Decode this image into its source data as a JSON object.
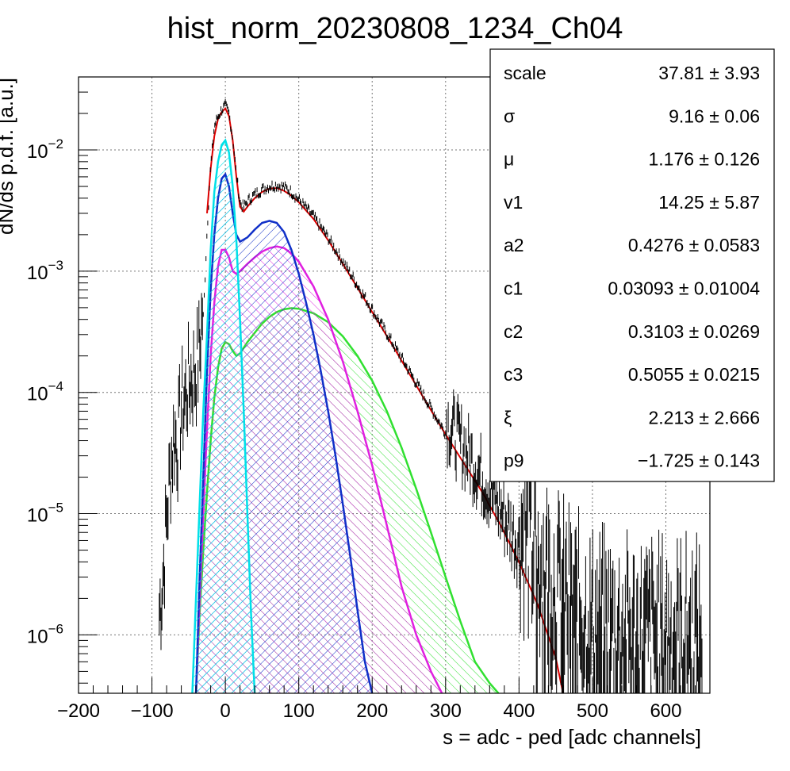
{
  "chart_data": {
    "type": "line",
    "title": "hist_norm_20230808_1234_Ch04",
    "xlabel": "s = adc - ped [adc channels]",
    "ylabel": "dN/ds p.d.f. [a.u.]",
    "xlim": [
      -200,
      660
    ],
    "ylim": [
      3.3e-07,
      0.04
    ],
    "yscale": "log",
    "grid": true,
    "x_ticks": [
      "−200",
      "−100",
      "0",
      "100",
      "200",
      "300",
      "400",
      "500",
      "600"
    ],
    "x_tick_values": [
      -200,
      -100,
      0,
      100,
      200,
      300,
      400,
      500,
      600
    ],
    "y_ticks": [
      {
        "value": 1e-06,
        "base": "10",
        "exp": "−6"
      },
      {
        "value": 1e-05,
        "base": "10",
        "exp": "−5"
      },
      {
        "value": 0.0001,
        "base": "10",
        "exp": "−4"
      },
      {
        "value": 0.001,
        "base": "10",
        "exp": "−3"
      },
      {
        "value": 0.01,
        "base": "10",
        "exp": "−2"
      }
    ],
    "histogram": {
      "color": "#000000",
      "points": [
        [
          -90,
          1e-06
        ],
        [
          -85,
          2e-06
        ],
        [
          -80,
          6e-06
        ],
        [
          -75,
          1.5e-05
        ],
        [
          -70,
          3e-05
        ],
        [
          -65,
          2.5e-05
        ],
        [
          -60,
          5e-05
        ],
        [
          -55,
          6e-05
        ],
        [
          -50,
          8e-05
        ],
        [
          -45,
          9e-05
        ],
        [
          -40,
          0.0001
        ],
        [
          -35,
          0.00015
        ],
        [
          -30,
          0.0004
        ],
        [
          -25,
          0.002
        ],
        [
          -20,
          0.007
        ],
        [
          -15,
          0.015
        ],
        [
          -10,
          0.018
        ],
        [
          -5,
          0.0205
        ],
        [
          0,
          0.022
        ],
        [
          5,
          0.019
        ],
        [
          10,
          0.012
        ],
        [
          15,
          0.006
        ],
        [
          20,
          0.0035
        ],
        [
          25,
          0.0032
        ],
        [
          30,
          0.0036
        ],
        [
          40,
          0.0041
        ],
        [
          50,
          0.0045
        ],
        [
          60,
          0.0048
        ],
        [
          70,
          0.0049
        ],
        [
          80,
          0.0047
        ],
        [
          90,
          0.0043
        ],
        [
          100,
          0.0037
        ],
        [
          120,
          0.0027
        ],
        [
          140,
          0.0018
        ],
        [
          160,
          0.00115
        ],
        [
          180,
          0.00073
        ],
        [
          200,
          0.00046
        ],
        [
          225,
          0.00026
        ],
        [
          250,
          0.000145
        ],
        [
          275,
          8e-05
        ],
        [
          300,
          4.4e-05
        ],
        [
          325,
          2.6e-05
        ],
        [
          350,
          1.5e-05
        ],
        [
          375,
          8e-06
        ],
        [
          400,
          4e-06
        ],
        [
          425,
          2.2e-06
        ],
        [
          450,
          1.2e-06
        ],
        [
          475,
          8e-07
        ],
        [
          500,
          6e-07
        ],
        [
          550,
          5e-07
        ],
        [
          600,
          5e-07
        ],
        [
          650,
          5e-07
        ]
      ]
    },
    "series": [
      {
        "color": "#dd0000",
        "fill": "none",
        "points": [
          [
            -25,
            0.003
          ],
          [
            -20,
            0.007
          ],
          [
            -15,
            0.013
          ],
          [
            -10,
            0.018
          ],
          [
            -5,
            0.0205
          ],
          [
            0,
            0.022
          ],
          [
            5,
            0.019
          ],
          [
            10,
            0.012
          ],
          [
            15,
            0.006
          ],
          [
            20,
            0.0034
          ],
          [
            25,
            0.0031
          ],
          [
            30,
            0.0034
          ],
          [
            40,
            0.004
          ],
          [
            50,
            0.0045
          ],
          [
            60,
            0.0048
          ],
          [
            70,
            0.00485
          ],
          [
            80,
            0.0046
          ],
          [
            90,
            0.0042
          ],
          [
            100,
            0.0037
          ],
          [
            120,
            0.0027
          ],
          [
            140,
            0.0018
          ],
          [
            160,
            0.00115
          ],
          [
            180,
            0.00073
          ],
          [
            200,
            0.00046
          ],
          [
            225,
            0.00026
          ],
          [
            250,
            0.000145
          ],
          [
            275,
            8e-05
          ],
          [
            300,
            4.5e-05
          ],
          [
            325,
            2.6e-05
          ],
          [
            350,
            1.5e-05
          ],
          [
            375,
            8e-06
          ],
          [
            400,
            4e-06
          ],
          [
            425,
            1.8e-06
          ],
          [
            450,
            6.5e-07
          ],
          [
            460,
            3.3e-07
          ]
        ]
      },
      {
        "color": "#00e0e8",
        "fill": "#00e0e8",
        "points": [
          [
            -45,
            3.3e-07
          ],
          [
            -40,
            2e-06
          ],
          [
            -35,
            1.2e-05
          ],
          [
            -30,
            7e-05
          ],
          [
            -25,
            0.0003
          ],
          [
            -20,
            0.0015
          ],
          [
            -15,
            0.0045
          ],
          [
            -10,
            0.008
          ],
          [
            -5,
            0.011
          ],
          [
            0,
            0.012
          ],
          [
            5,
            0.0095
          ],
          [
            10,
            0.005
          ],
          [
            15,
            0.0018
          ],
          [
            20,
            0.0004
          ],
          [
            25,
            7e-05
          ],
          [
            30,
            1e-05
          ],
          [
            35,
            1.5e-06
          ],
          [
            40,
            3.3e-07
          ]
        ]
      },
      {
        "color": "#1030c8",
        "fill": "#1030c8",
        "points": [
          [
            -40,
            3.3e-07
          ],
          [
            -35,
            3e-06
          ],
          [
            -30,
            2e-05
          ],
          [
            -25,
            0.00015
          ],
          [
            -20,
            0.0007
          ],
          [
            -15,
            0.002
          ],
          [
            -10,
            0.004
          ],
          [
            -5,
            0.0058
          ],
          [
            0,
            0.0063
          ],
          [
            5,
            0.005
          ],
          [
            10,
            0.003
          ],
          [
            15,
            0.002
          ],
          [
            20,
            0.00175
          ],
          [
            30,
            0.0019
          ],
          [
            40,
            0.0022
          ],
          [
            50,
            0.0025
          ],
          [
            60,
            0.0026
          ],
          [
            70,
            0.0025
          ],
          [
            80,
            0.0021
          ],
          [
            90,
            0.0015
          ],
          [
            100,
            0.00095
          ],
          [
            110,
            0.00055
          ],
          [
            120,
            0.0003
          ],
          [
            130,
            0.00015
          ],
          [
            140,
            7e-05
          ],
          [
            150,
            3e-05
          ],
          [
            160,
            1.2e-05
          ],
          [
            170,
            4.5e-06
          ],
          [
            180,
            1.6e-06
          ],
          [
            190,
            6e-07
          ],
          [
            200,
            3.3e-07
          ]
        ]
      },
      {
        "color": "#e020e0",
        "fill": "#e020e0",
        "points": [
          [
            -40,
            3.3e-07
          ],
          [
            -35,
            2e-06
          ],
          [
            -30,
            1e-05
          ],
          [
            -25,
            5e-05
          ],
          [
            -20,
            0.0002
          ],
          [
            -15,
            0.00055
          ],
          [
            -10,
            0.0011
          ],
          [
            -5,
            0.0015
          ],
          [
            0,
            0.0015
          ],
          [
            5,
            0.0013
          ],
          [
            10,
            0.001
          ],
          [
            15,
            0.00095
          ],
          [
            20,
            0.001
          ],
          [
            30,
            0.00115
          ],
          [
            40,
            0.0013
          ],
          [
            50,
            0.00145
          ],
          [
            60,
            0.00155
          ],
          [
            70,
            0.0016
          ],
          [
            80,
            0.00155
          ],
          [
            90,
            0.0014
          ],
          [
            100,
            0.0012
          ],
          [
            120,
            0.00075
          ],
          [
            140,
            0.0004
          ],
          [
            160,
            0.00018
          ],
          [
            180,
            7e-05
          ],
          [
            200,
            2.5e-05
          ],
          [
            220,
            8e-06
          ],
          [
            240,
            2.5e-06
          ],
          [
            260,
            1e-06
          ],
          [
            280,
            5e-07
          ],
          [
            295,
            3.3e-07
          ]
        ]
      },
      {
        "color": "#30e030",
        "fill": "#30e030",
        "points": [
          [
            -40,
            3.3e-07
          ],
          [
            -35,
            1.5e-06
          ],
          [
            -30,
            5e-06
          ],
          [
            -25,
            1.5e-05
          ],
          [
            -20,
            4e-05
          ],
          [
            -15,
            9e-05
          ],
          [
            -10,
            0.00016
          ],
          [
            -5,
            0.00023
          ],
          [
            0,
            0.00026
          ],
          [
            5,
            0.00025
          ],
          [
            10,
            0.00022
          ],
          [
            15,
            0.0002
          ],
          [
            20,
            0.00021
          ],
          [
            30,
            0.00026
          ],
          [
            40,
            0.00031
          ],
          [
            50,
            0.00037
          ],
          [
            60,
            0.00042
          ],
          [
            70,
            0.00046
          ],
          [
            80,
            0.000485
          ],
          [
            90,
            0.000495
          ],
          [
            100,
            0.00049
          ],
          [
            120,
            0.00045
          ],
          [
            140,
            0.00038
          ],
          [
            160,
            0.00029
          ],
          [
            180,
            0.0002
          ],
          [
            200,
            0.000125
          ],
          [
            220,
            7e-05
          ],
          [
            240,
            3.5e-05
          ],
          [
            260,
            1.6e-05
          ],
          [
            280,
            7e-06
          ],
          [
            300,
            3e-06
          ],
          [
            320,
            1.3e-06
          ],
          [
            340,
            6e-07
          ],
          [
            360,
            4e-07
          ],
          [
            372,
            3.3e-07
          ]
        ]
      }
    ]
  },
  "stats_box": {
    "rows": [
      {
        "label": "scale",
        "value": "37.81 ± 3.93"
      },
      {
        "label": "σ",
        "value": "9.16 ± 0.06"
      },
      {
        "label": "μ",
        "value": "1.176 ± 0.126"
      },
      {
        "label": "v1",
        "value": "14.25 ± 5.87"
      },
      {
        "label": "a2",
        "value": "0.4276 ± 0.0583"
      },
      {
        "label": "c1",
        "value": "0.03093 ± 0.01004"
      },
      {
        "label": "c2",
        "value": "0.3103 ± 0.0269"
      },
      {
        "label": "c3",
        "value": "0.5055 ± 0.0215"
      },
      {
        "label": "ξ",
        "value": "2.213 ± 2.666"
      },
      {
        "label": "p9",
        "value": "−1.725 ± 0.143"
      }
    ]
  }
}
